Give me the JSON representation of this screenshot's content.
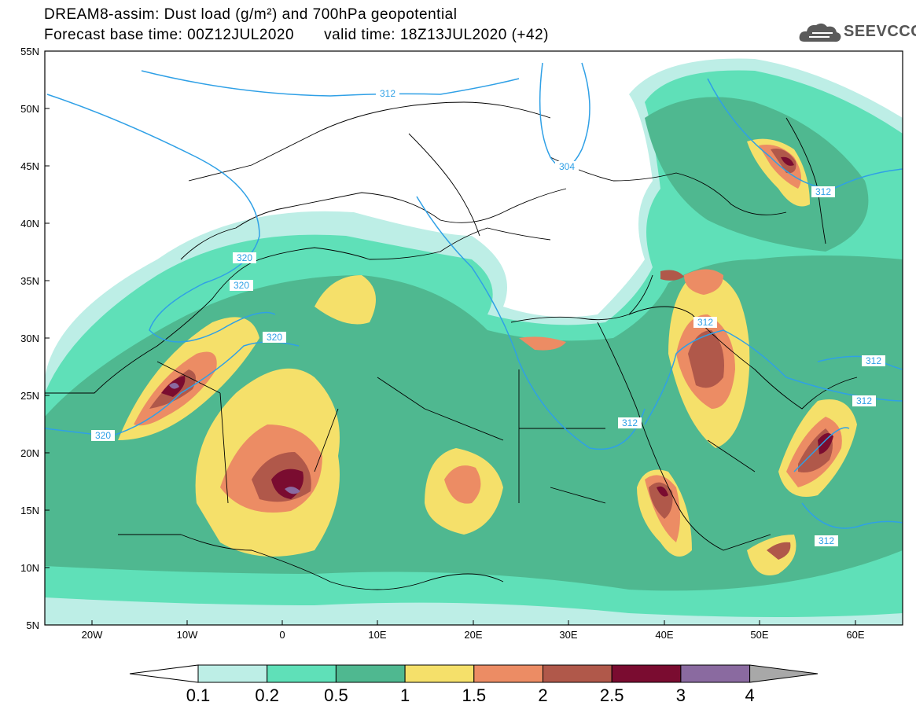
{
  "header": {
    "title_line1": "DREAM8-assim: Dust load (g/m²) and 700hPa geopotential",
    "title_base": "Forecast base time: 00Z12JUL2020",
    "title_valid": "valid time: 18Z13JUL2020 (+42)",
    "logo_text": "SEEVCCC",
    "logo_icon": "cloud-logo-icon"
  },
  "axes": {
    "lat_labels": [
      "55N",
      "50N",
      "45N",
      "40N",
      "35N",
      "30N",
      "25N",
      "20N",
      "15N",
      "10N",
      "5N"
    ],
    "lon_labels": [
      "20W",
      "10W",
      "0",
      "10E",
      "20E",
      "30E",
      "40E",
      "50E",
      "60E"
    ]
  },
  "contour_labels": [
    "312",
    "304",
    "312",
    "320",
    "320",
    "320",
    "320",
    "312",
    "312",
    "312",
    "312",
    "312"
  ],
  "colorbar": {
    "tick_labels": [
      "0.1",
      "0.2",
      "0.5",
      "1",
      "1.5",
      "2",
      "2.5",
      "3",
      "4"
    ],
    "colors": [
      "#ffffff",
      "#bdeee6",
      "#5fe0b8",
      "#4fb890",
      "#f5e06a",
      "#ec8c64",
      "#b0584a",
      "#7a0c30",
      "#8a6aa0",
      "#a8a8a8"
    ]
  }
}
